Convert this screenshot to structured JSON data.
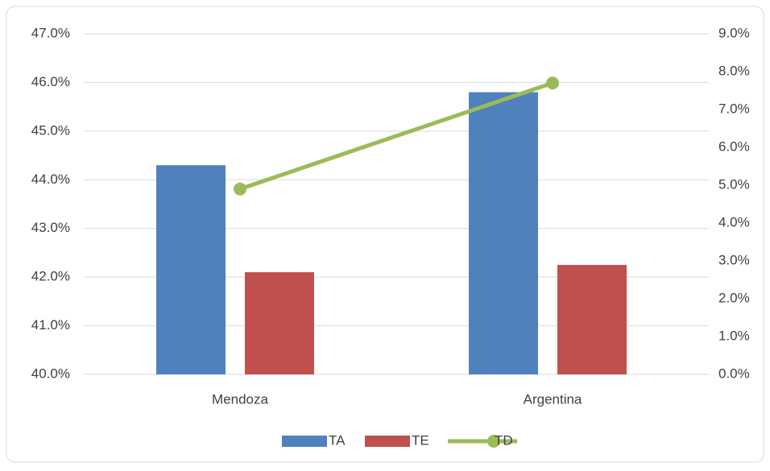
{
  "chart_data": {
    "type": "bar",
    "categories": [
      "Mendoza",
      "Argentina"
    ],
    "series": [
      {
        "name": "TA",
        "color": "#4f81bd",
        "values": [
          44.3,
          45.8
        ]
      },
      {
        "name": "TE",
        "color": "#c0504d",
        "values": [
          42.1,
          42.25
        ]
      },
      {
        "name": "TD",
        "color": "#9bbb59",
        "type": "line",
        "axis": "y2",
        "values": [
          4.9,
          7.7
        ]
      }
    ],
    "ylim": [
      40,
      47
    ],
    "yticks": [
      {
        "value": 40,
        "label": "40.0%"
      },
      {
        "value": 41,
        "label": "41.0%"
      },
      {
        "value": 42,
        "label": "42.0%"
      },
      {
        "value": 43,
        "label": "43.0%"
      },
      {
        "value": 44,
        "label": "44.0%"
      },
      {
        "value": 45,
        "label": "45.0%"
      },
      {
        "value": 46,
        "label": "46.0%"
      },
      {
        "value": 47,
        "label": "47.0%"
      }
    ],
    "y2lim": [
      0,
      9
    ],
    "y2ticks": [
      {
        "value": 0,
        "label": "0.0%"
      },
      {
        "value": 1,
        "label": "1.0%"
      },
      {
        "value": 2,
        "label": "2.0%"
      },
      {
        "value": 3,
        "label": "3.0%"
      },
      {
        "value": 4,
        "label": "4.0%"
      },
      {
        "value": 5,
        "label": "5.0%"
      },
      {
        "value": 6,
        "label": "6.0%"
      },
      {
        "value": 7,
        "label": "7.0%"
      },
      {
        "value": 8,
        "label": "8.0%"
      },
      {
        "value": 9,
        "label": "9.0%"
      }
    ],
    "grid": true,
    "legend": "bottom"
  }
}
